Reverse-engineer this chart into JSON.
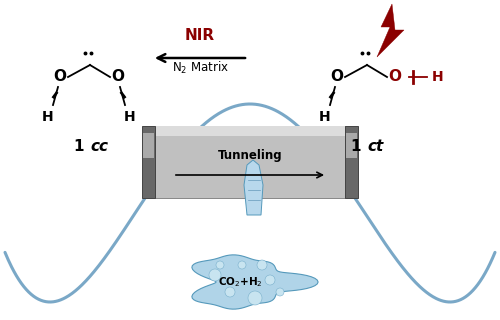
{
  "bg_color": "#ffffff",
  "curve_color": "#7aa8c7",
  "curve_lw": 2.2,
  "nir_color": "#8b0000",
  "tunneling_text": "Tunneling",
  "nir_text": "NIR",
  "matrix_text": "N₂ Matrix",
  "fig_w": 5.0,
  "fig_h": 3.2,
  "dpi": 100
}
